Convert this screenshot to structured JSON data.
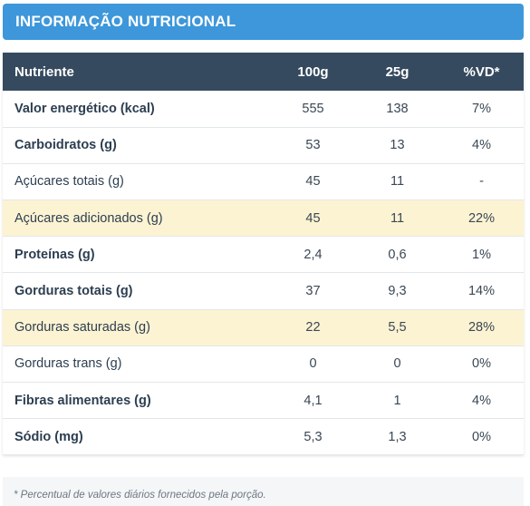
{
  "header": {
    "title": "INFORMAÇÃO NUTRICIONAL"
  },
  "table": {
    "columns": [
      "Nutriente",
      "100g",
      "25g",
      "%VD*"
    ],
    "rows": [
      {
        "nutrient": "Valor energético (kcal)",
        "per100": "555",
        "per25": "138",
        "vd": "7%",
        "bold": true,
        "highlight": false
      },
      {
        "nutrient": "Carboidratos (g)",
        "per100": "53",
        "per25": "13",
        "vd": "4%",
        "bold": true,
        "highlight": false
      },
      {
        "nutrient": "Açúcares totais (g)",
        "per100": "45",
        "per25": "11",
        "vd": "-",
        "bold": false,
        "highlight": false
      },
      {
        "nutrient": "Açúcares adicionados (g)",
        "per100": "45",
        "per25": "11",
        "vd": "22%",
        "bold": false,
        "highlight": true
      },
      {
        "nutrient": "Proteínas (g)",
        "per100": "2,4",
        "per25": "0,6",
        "vd": "1%",
        "bold": true,
        "highlight": false
      },
      {
        "nutrient": "Gorduras totais (g)",
        "per100": "37",
        "per25": "9,3",
        "vd": "14%",
        "bold": true,
        "highlight": false
      },
      {
        "nutrient": "Gorduras saturadas (g)",
        "per100": "22",
        "per25": "5,5",
        "vd": "28%",
        "bold": false,
        "highlight": true
      },
      {
        "nutrient": "Gorduras trans (g)",
        "per100": "0",
        "per25": "0",
        "vd": "0%",
        "bold": false,
        "highlight": false
      },
      {
        "nutrient": "Fibras alimentares (g)",
        "per100": "4,1",
        "per25": "1",
        "vd": "4%",
        "bold": true,
        "highlight": false
      },
      {
        "nutrient": "Sódio (mg)",
        "per100": "5,3",
        "per25": "1,3",
        "vd": "0%",
        "bold": true,
        "highlight": false
      }
    ]
  },
  "footnote": "* Percentual de valores diários fornecidos pela porção.",
  "colors": {
    "header_bar": "#3d97da",
    "table_head": "#354a5f",
    "highlight_row": "#fcf3d2"
  }
}
